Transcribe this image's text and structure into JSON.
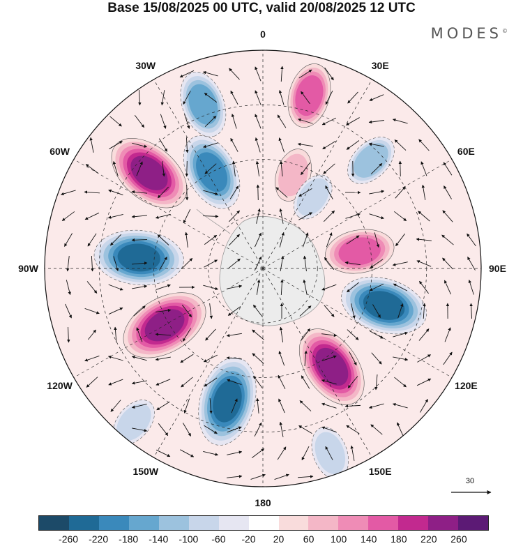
{
  "title": "Base 15/08/2025 00 UTC, valid 20/08/2025 12 UTC",
  "brand": {
    "name": "MODES",
    "mark": "©"
  },
  "projection": "south-polar-stereographic",
  "longitude_labels": [
    {
      "text": "0",
      "lon": 0
    },
    {
      "text": "30E",
      "lon": 30
    },
    {
      "text": "60E",
      "lon": 60
    },
    {
      "text": "90E",
      "lon": 90
    },
    {
      "text": "120E",
      "lon": 120
    },
    {
      "text": "150E",
      "lon": 150
    },
    {
      "text": "180",
      "lon": 180
    },
    {
      "text": "150W",
      "lon": -150
    },
    {
      "text": "120W",
      "lon": -120
    },
    {
      "text": "90W",
      "lon": -90
    },
    {
      "text": "60W",
      "lon": -60
    },
    {
      "text": "30W",
      "lon": -30
    }
  ],
  "vector_reference": {
    "value": "30"
  },
  "colorbar": {
    "ticks": [
      "-260",
      "-220",
      "-180",
      "-140",
      "-100",
      "-60",
      "-20",
      "20",
      "60",
      "100",
      "140",
      "180",
      "220",
      "260"
    ],
    "colors": [
      "#1c4a68",
      "#1f6a96",
      "#3a89bb",
      "#66a7cf",
      "#9cc2de",
      "#c8d6ea",
      "#e6e6f2",
      "#ffffff",
      "#f9dcdc",
      "#f4b7c7",
      "#ef8cb6",
      "#e35aa5",
      "#c2298f",
      "#8e1f86",
      "#5c1a75"
    ]
  },
  "anomaly_centers": [
    {
      "lon": -20,
      "r": 0.8,
      "value": -150
    },
    {
      "lon": -28,
      "r": 0.5,
      "value": -200
    },
    {
      "lon": 15,
      "r": 0.82,
      "value": 140
    },
    {
      "lon": -50,
      "r": 0.68,
      "value": 240
    },
    {
      "lon": -85,
      "r": 0.57,
      "value": -250
    },
    {
      "lon": -120,
      "r": 0.52,
      "value": 250
    },
    {
      "lon": -165,
      "r": 0.63,
      "value": -250
    },
    {
      "lon": 145,
      "r": 0.55,
      "value": 230
    },
    {
      "lon": 107,
      "r": 0.58,
      "value": -240
    },
    {
      "lon": 80,
      "r": 0.45,
      "value": 160
    },
    {
      "lon": 45,
      "r": 0.7,
      "value": -100
    },
    {
      "lon": 18,
      "r": 0.45,
      "value": 90
    },
    {
      "lon": 35,
      "r": 0.4,
      "value": -70
    },
    {
      "lon": 160,
      "r": 0.9,
      "value": -90
    },
    {
      "lon": -140,
      "r": 0.92,
      "value": -80
    }
  ]
}
